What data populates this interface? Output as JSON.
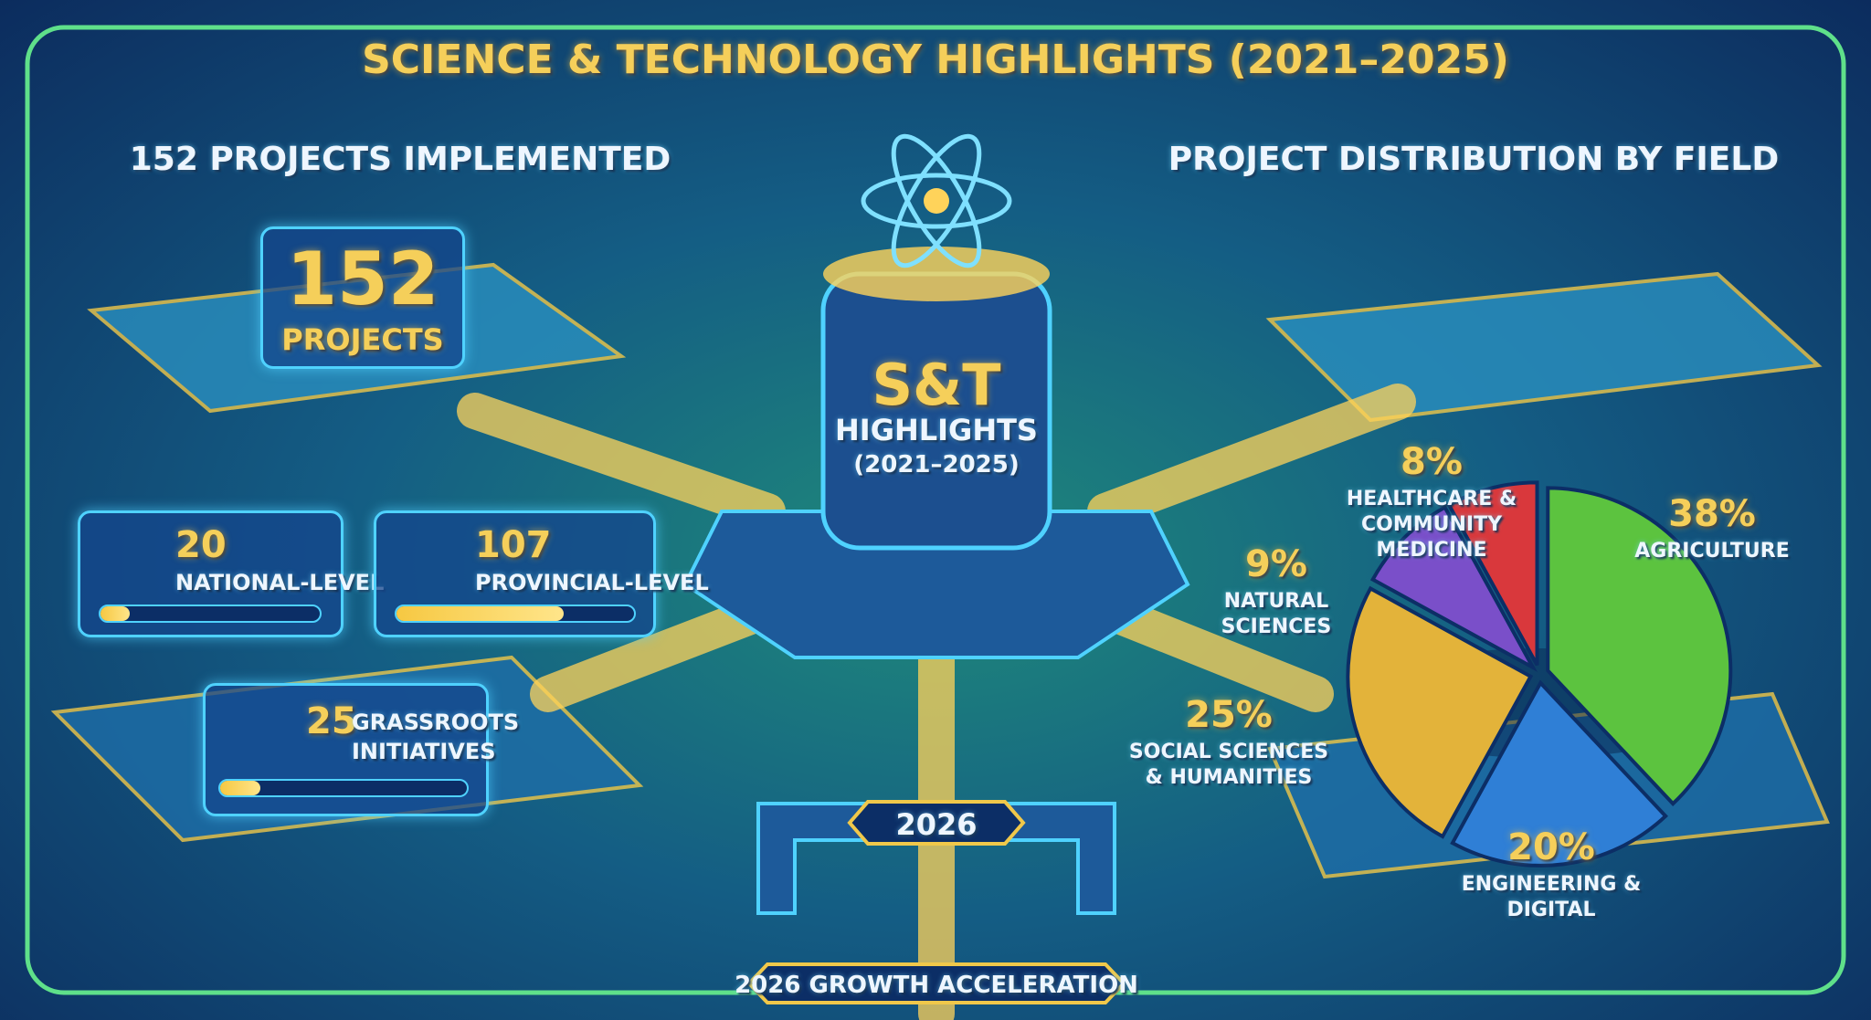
{
  "title": "SCIENCE & TECHNOLOGY HIGHLIGHTS (2021–2025)",
  "projects": {
    "heading": "152 PROJECTS IMPLEMENTED",
    "total": 152,
    "total_label": "PROJECTS",
    "levels": [
      {
        "value": 20,
        "label": "NATIONAL-LEVEL"
      },
      {
        "value": 107,
        "label": "PROVINCIAL-LEVEL"
      },
      {
        "value": 25,
        "label": "GRASSROOTS INITIATIVES"
      }
    ]
  },
  "center": {
    "title": "S&T",
    "subtitle": "HIGHLIGHTS",
    "period": "(2021–2025)"
  },
  "milestone": {
    "year": "2026",
    "banner": "2026 GROWTH ACCELERATION"
  },
  "chart_data": {
    "type": "pie",
    "title": "PROJECT DISTRIBUTION BY FIELD",
    "categories": [
      "AGRICULTURE",
      "ENGINEERING & DIGITAL",
      "SOCIAL SCIENCES & HUMANITIES",
      "NATURAL SCIENCES",
      "HEALTHCARE & COMMUNITY MEDICINE"
    ],
    "values": [
      38,
      20,
      25,
      9,
      8
    ],
    "value_labels": [
      "38%",
      "20%",
      "25%",
      "9%",
      "8%"
    ],
    "colors": [
      "#5cc33f",
      "#2f7fd6",
      "#e3b33a",
      "#7a4fc9",
      "#d9383c"
    ]
  }
}
